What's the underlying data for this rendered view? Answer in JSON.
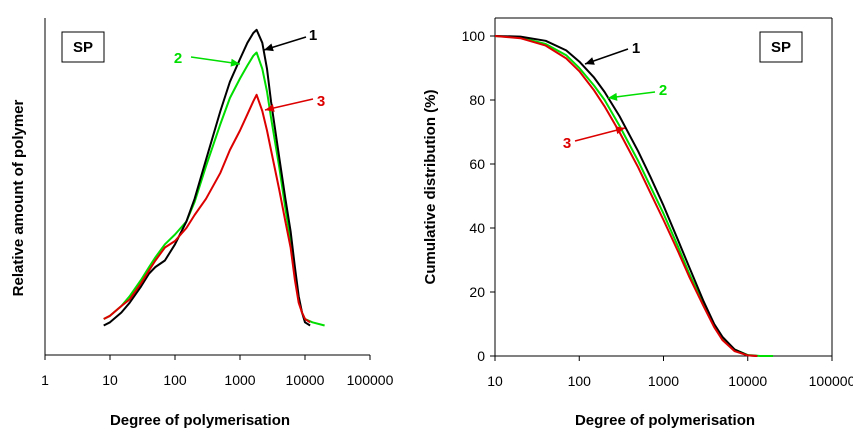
{
  "chart_data": [
    {
      "type": "line",
      "x_scale": "log",
      "xlim": [
        1,
        100000
      ],
      "xticks": [
        1,
        10,
        100,
        1000,
        10000,
        100000
      ],
      "xtick_labels": [
        "1",
        "10",
        "100",
        "1000",
        "10000",
        "100000"
      ],
      "xlabel": "Degree of polymerisation",
      "ylabel": "Relative amount of polymer",
      "y_tick_labels_shown": false,
      "ylim": [
        0,
        1
      ],
      "legend_box": "SP",
      "grid": false,
      "series": [
        {
          "name": "1",
          "color": "#000000",
          "points": [
            [
              8,
              0.06
            ],
            [
              10,
              0.07
            ],
            [
              15,
              0.1
            ],
            [
              20,
              0.13
            ],
            [
              30,
              0.18
            ],
            [
              40,
              0.22
            ],
            [
              50,
              0.24
            ],
            [
              70,
              0.26
            ],
            [
              100,
              0.31
            ],
            [
              150,
              0.38
            ],
            [
              200,
              0.45
            ],
            [
              300,
              0.57
            ],
            [
              500,
              0.72
            ],
            [
              700,
              0.81
            ],
            [
              1000,
              0.88
            ],
            [
              1300,
              0.93
            ],
            [
              1600,
              0.96
            ],
            [
              1800,
              0.97
            ],
            [
              2200,
              0.93
            ],
            [
              2600,
              0.85
            ],
            [
              3000,
              0.75
            ],
            [
              4000,
              0.58
            ],
            [
              5000,
              0.45
            ],
            [
              6000,
              0.35
            ],
            [
              7000,
              0.24
            ],
            [
              8000,
              0.15
            ],
            [
              9000,
              0.1
            ],
            [
              10000,
              0.07
            ],
            [
              12000,
              0.06
            ]
          ]
        },
        {
          "name": "2",
          "color": "#00dd00",
          "points": [
            [
              8,
              0.08
            ],
            [
              10,
              0.09
            ],
            [
              15,
              0.12
            ],
            [
              20,
              0.15
            ],
            [
              30,
              0.2
            ],
            [
              40,
              0.24
            ],
            [
              50,
              0.27
            ],
            [
              70,
              0.31
            ],
            [
              100,
              0.34
            ],
            [
              150,
              0.38
            ],
            [
              200,
              0.44
            ],
            [
              300,
              0.55
            ],
            [
              500,
              0.68
            ],
            [
              700,
              0.76
            ],
            [
              1000,
              0.82
            ],
            [
              1300,
              0.86
            ],
            [
              1600,
              0.89
            ],
            [
              1800,
              0.9
            ],
            [
              2200,
              0.85
            ],
            [
              2600,
              0.78
            ],
            [
              3000,
              0.7
            ],
            [
              4000,
              0.55
            ],
            [
              5000,
              0.42
            ],
            [
              6000,
              0.32
            ],
            [
              7000,
              0.22
            ],
            [
              8000,
              0.14
            ],
            [
              9000,
              0.1
            ],
            [
              10000,
              0.08
            ],
            [
              13000,
              0.07
            ],
            [
              20000,
              0.06
            ]
          ]
        },
        {
          "name": "3",
          "color": "#dd0000",
          "points": [
            [
              8,
              0.08
            ],
            [
              10,
              0.09
            ],
            [
              15,
              0.12
            ],
            [
              20,
              0.14
            ],
            [
              30,
              0.19
            ],
            [
              40,
              0.23
            ],
            [
              50,
              0.26
            ],
            [
              70,
              0.3
            ],
            [
              100,
              0.32
            ],
            [
              150,
              0.36
            ],
            [
              200,
              0.4
            ],
            [
              300,
              0.45
            ],
            [
              500,
              0.53
            ],
            [
              700,
              0.6
            ],
            [
              1000,
              0.66
            ],
            [
              1300,
              0.71
            ],
            [
              1600,
              0.75
            ],
            [
              1800,
              0.77
            ],
            [
              2200,
              0.72
            ],
            [
              2600,
              0.66
            ],
            [
              3000,
              0.6
            ],
            [
              4000,
              0.48
            ],
            [
              5000,
              0.38
            ],
            [
              6000,
              0.3
            ],
            [
              7000,
              0.2
            ],
            [
              8000,
              0.13
            ],
            [
              9000,
              0.1
            ],
            [
              10000,
              0.08
            ],
            [
              12000,
              0.07
            ]
          ]
        }
      ],
      "callouts": [
        {
          "label": "1",
          "color": "#000000"
        },
        {
          "label": "2",
          "color": "#00dd00"
        },
        {
          "label": "3",
          "color": "#dd0000"
        }
      ]
    },
    {
      "type": "line",
      "x_scale": "log",
      "xlim": [
        10,
        100000
      ],
      "xticks": [
        10,
        100,
        1000,
        10000,
        100000
      ],
      "xtick_labels": [
        "10",
        "100",
        "1000",
        "10000",
        "100000"
      ],
      "ylim": [
        0,
        100
      ],
      "yticks": [
        0,
        20,
        40,
        60,
        80,
        100
      ],
      "ytick_labels": [
        "0",
        "20",
        "40",
        "60",
        "80",
        "100"
      ],
      "xlabel": "Degree of polymerisation",
      "ylabel": "Cumulative distribution (%)",
      "legend_box": "SP",
      "grid": false,
      "series": [
        {
          "name": "1",
          "color": "#000000",
          "points": [
            [
              10,
              100
            ],
            [
              20,
              99.8
            ],
            [
              40,
              98.5
            ],
            [
              70,
              95.5
            ],
            [
              100,
              92
            ],
            [
              150,
              87
            ],
            [
              200,
              82.5
            ],
            [
              300,
              75
            ],
            [
              500,
              64
            ],
            [
              700,
              56
            ],
            [
              1000,
              47
            ],
            [
              1500,
              36
            ],
            [
              2000,
              28
            ],
            [
              3000,
              17
            ],
            [
              4000,
              10
            ],
            [
              5000,
              6
            ],
            [
              7000,
              2
            ],
            [
              10000,
              0.2
            ],
            [
              13000,
              0
            ]
          ]
        },
        {
          "name": "2",
          "color": "#00dd00",
          "points": [
            [
              10,
              100
            ],
            [
              20,
              99.5
            ],
            [
              40,
              97.5
            ],
            [
              70,
              94
            ],
            [
              100,
              90
            ],
            [
              150,
              84.5
            ],
            [
              200,
              80
            ],
            [
              300,
              72
            ],
            [
              500,
              61
            ],
            [
              700,
              53
            ],
            [
              1000,
              44.5
            ],
            [
              1500,
              34
            ],
            [
              2000,
              26
            ],
            [
              3000,
              16
            ],
            [
              4000,
              9.5
            ],
            [
              5000,
              5.5
            ],
            [
              7000,
              2
            ],
            [
              10000,
              0.3
            ],
            [
              14000,
              0
            ],
            [
              20000,
              0
            ]
          ]
        },
        {
          "name": "3",
          "color": "#dd0000",
          "points": [
            [
              10,
              100
            ],
            [
              20,
              99.3
            ],
            [
              40,
              97
            ],
            [
              70,
              93
            ],
            [
              100,
              89
            ],
            [
              150,
              83
            ],
            [
              200,
              78
            ],
            [
              300,
              70
            ],
            [
              500,
              59
            ],
            [
              700,
              51
            ],
            [
              1000,
              42.5
            ],
            [
              1500,
              32.5
            ],
            [
              2000,
              25
            ],
            [
              3000,
              15.5
            ],
            [
              4000,
              9
            ],
            [
              5000,
              5
            ],
            [
              7000,
              1.5
            ],
            [
              10000,
              0.2
            ],
            [
              13000,
              0
            ]
          ]
        }
      ],
      "callouts": [
        {
          "label": "1",
          "color": "#000000"
        },
        {
          "label": "2",
          "color": "#00dd00"
        },
        {
          "label": "3",
          "color": "#dd0000"
        }
      ]
    }
  ]
}
